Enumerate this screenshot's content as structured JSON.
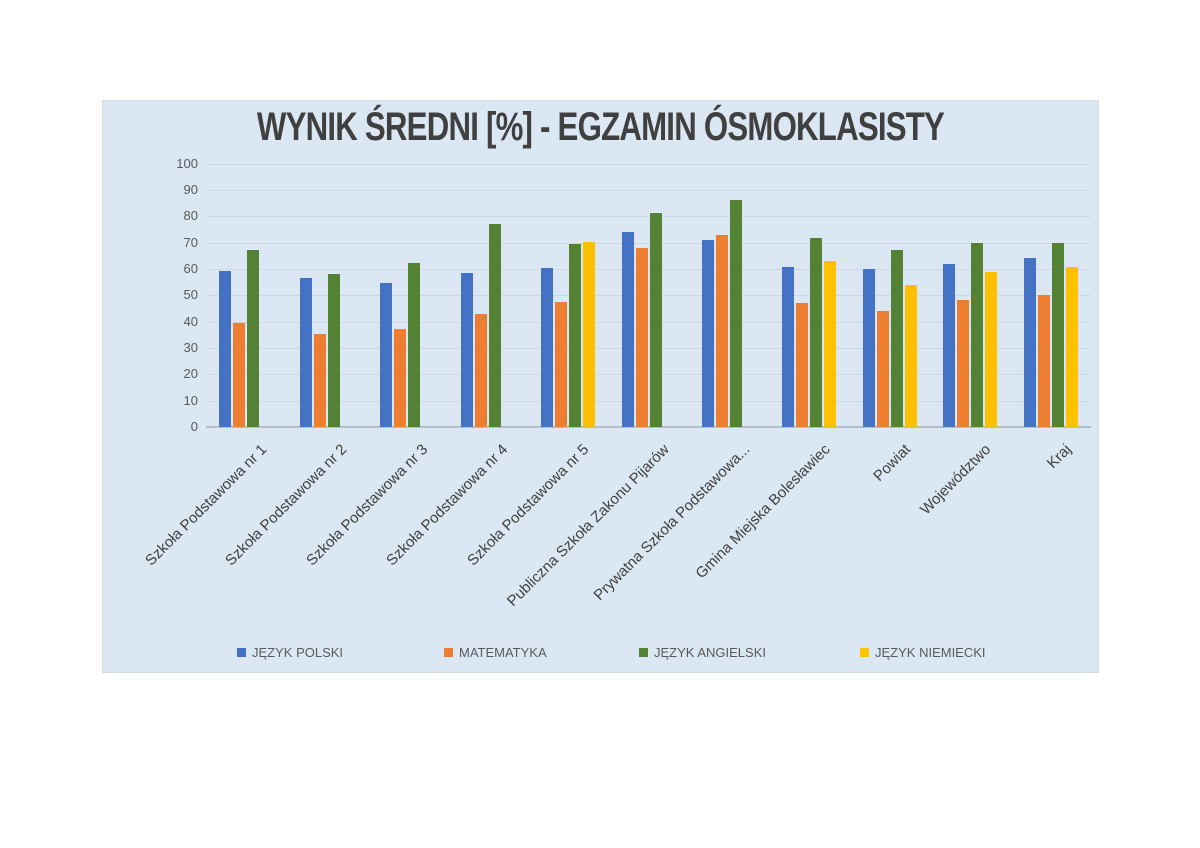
{
  "chart_data": {
    "type": "bar",
    "title": "WYNIK ŚREDNI [%] - EGZAMIN ÓSMOKLASISTY",
    "categories": [
      "Szkoła Podstawowa nr 1",
      "Szkoła Podstawowa nr 2",
      "Szkoła Podstawowa nr 3",
      "Szkoła Podstawowa nr 4",
      "Szkoła Podstawowa nr 5",
      "Publiczna Szkoła Zakonu Pijarów",
      "Prywatna Szkoła Podstawowa...",
      "Gmina Miejska Bolesławiec",
      "Powiat",
      "Województwo",
      "Kraj"
    ],
    "series": [
      {
        "name": "JĘZYK POLSKI",
        "color": "#4472C4",
        "values": [
          59.3,
          56.4,
          54.8,
          58.6,
          60.4,
          74.0,
          71.0,
          60.9,
          60.0,
          62.0,
          64.0
        ]
      },
      {
        "name": "MATEMATYKA",
        "color": "#ED7D31",
        "values": [
          39.3,
          35.2,
          37.1,
          43.0,
          47.4,
          67.8,
          73.0,
          47.1,
          44.1,
          48.1,
          50.1
        ]
      },
      {
        "name": "JĘZYK ANGIELSKI",
        "color": "#548235",
        "values": [
          67.2,
          58.2,
          62.4,
          77.0,
          69.3,
          81.2,
          86.3,
          71.9,
          67.0,
          69.7,
          69.9
        ]
      },
      {
        "name": "JĘZYK NIEMIECKI",
        "color": "#FFC000",
        "values": [
          null,
          null,
          null,
          null,
          70.1,
          null,
          null,
          63.1,
          54.0,
          58.9,
          60.8
        ]
      }
    ],
    "y_axis": {
      "min": 0,
      "max": 100,
      "step": 10,
      "tick_labels": [
        "0",
        "10",
        "20",
        "30",
        "40",
        "50",
        "60",
        "70",
        "80",
        "90",
        "100"
      ]
    },
    "grid": true,
    "legend_position": "bottom",
    "colors": {
      "panel_background": "#DBE8F4",
      "title_text": "#404040",
      "axis_text": "#595959",
      "category_text": "#404040",
      "gridline": "#CDD7E2"
    }
  }
}
